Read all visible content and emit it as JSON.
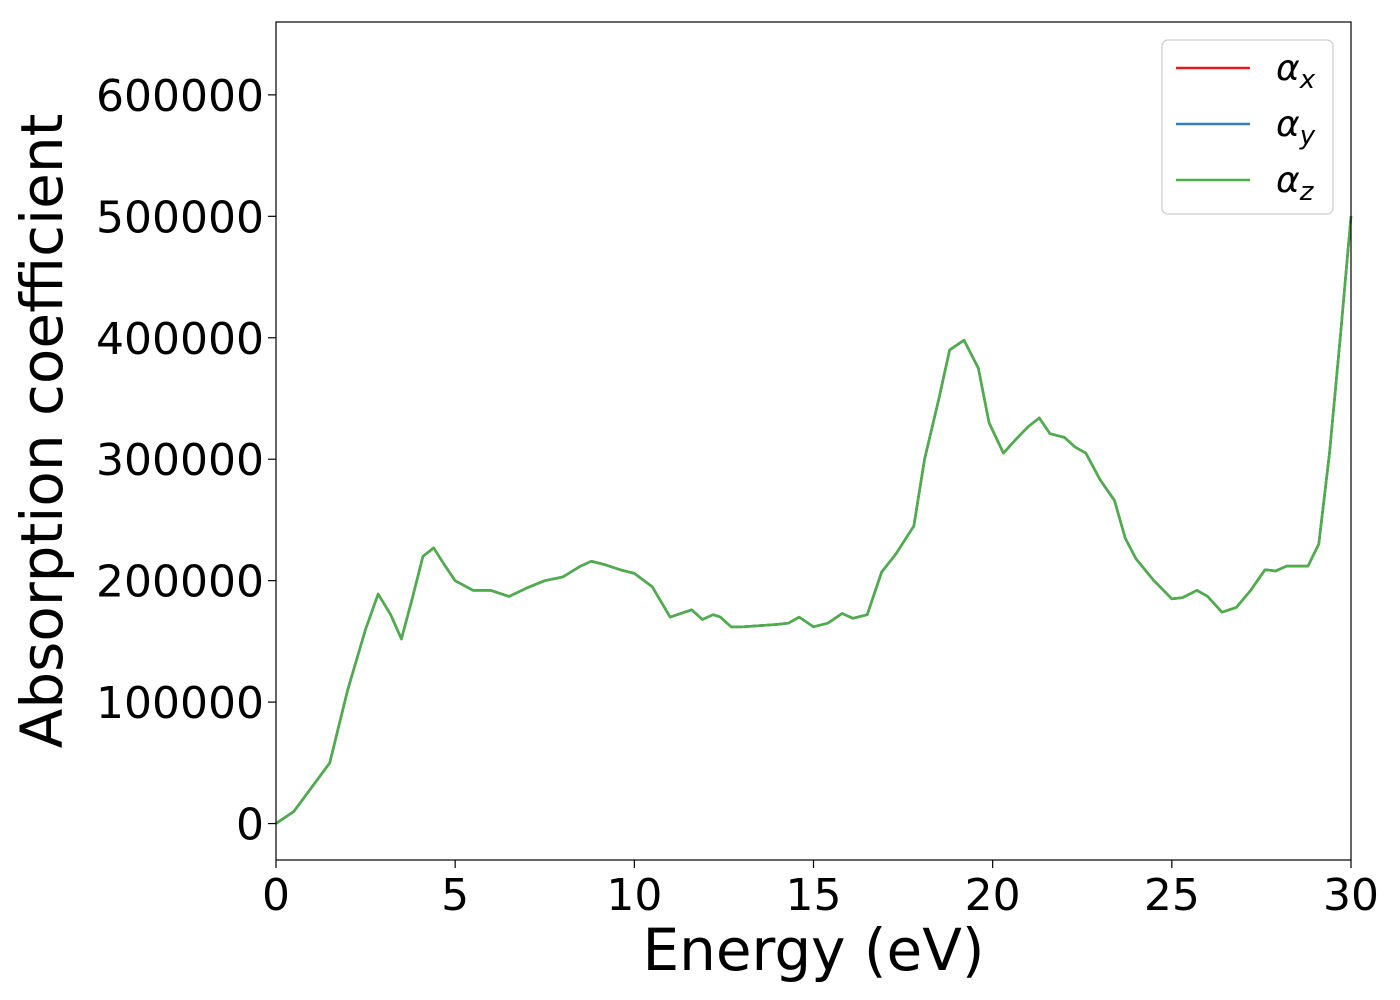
{
  "chart_data": {
    "type": "line",
    "title": "",
    "xlabel": "Energy (eV)",
    "ylabel": "Absorption coefficient",
    "xlim": [
      0,
      30
    ],
    "ylim": [
      -30000,
      660000
    ],
    "xticks": [
      0,
      5,
      10,
      15,
      20,
      25,
      30
    ],
    "yticks": [
      0,
      100000,
      200000,
      300000,
      400000,
      500000,
      600000
    ],
    "grid": false,
    "legend_position": "top-right",
    "legend": [
      {
        "base": "α",
        "sub": "x",
        "color": "#e41a1c"
      },
      {
        "base": "α",
        "sub": "y",
        "color": "#377eb8"
      },
      {
        "base": "α",
        "sub": "z",
        "color": "#4daf4a"
      }
    ],
    "x": [
      0,
      0.5,
      1.0,
      1.5,
      2.0,
      2.5,
      2.85,
      3.2,
      3.5,
      3.8,
      4.1,
      4.4,
      4.7,
      5.0,
      5.5,
      6.0,
      6.5,
      7.0,
      7.5,
      8.0,
      8.5,
      8.8,
      9.2,
      9.6,
      10.0,
      10.5,
      11.0,
      11.3,
      11.6,
      11.9,
      12.2,
      12.4,
      12.7,
      13.0,
      13.5,
      14.0,
      14.3,
      14.6,
      15.0,
      15.4,
      15.8,
      16.1,
      16.5,
      16.9,
      17.3,
      17.8,
      18.1,
      18.5,
      18.8,
      19.2,
      19.6,
      19.9,
      20.3,
      20.7,
      21.0,
      21.3,
      21.6,
      22.0,
      22.3,
      22.6,
      23.0,
      23.4,
      23.7,
      24.0,
      24.5,
      25.0,
      25.3,
      25.7,
      26.0,
      26.4,
      26.8,
      27.2,
      27.6,
      27.9,
      28.2,
      28.5,
      28.8,
      29.1,
      29.4,
      29.7,
      30.0
    ],
    "series": [
      {
        "name": "α_x",
        "values": [
          0,
          10000,
          30000,
          50000,
          110000,
          160000,
          189000,
          172000,
          152000,
          185000,
          220000,
          227000,
          213000,
          200000,
          192000,
          192000,
          187000,
          194000,
          200000,
          203000,
          212000,
          216000,
          213000,
          209000,
          206000,
          195000,
          170000,
          173000,
          176000,
          168000,
          172000,
          170000,
          162000,
          162000,
          163000,
          164000,
          165000,
          170000,
          162000,
          165000,
          173000,
          169000,
          172000,
          207000,
          222000,
          245000,
          300000,
          350000,
          390000,
          398000,
          375000,
          330000,
          305000,
          318000,
          327000,
          334000,
          321000,
          318000,
          310000,
          305000,
          283000,
          266000,
          235000,
          218000,
          200000,
          185000,
          186000,
          192000,
          187000,
          174000,
          178000,
          192000,
          209000,
          208000,
          212000,
          212000,
          212000,
          230000,
          305000,
          400000,
          500000
        ]
      },
      {
        "name": "α_y",
        "values": [
          0,
          10000,
          30000,
          50000,
          110000,
          160000,
          189000,
          172000,
          152000,
          185000,
          220000,
          227000,
          213000,
          200000,
          192000,
          192000,
          187000,
          194000,
          200000,
          203000,
          212000,
          216000,
          213000,
          209000,
          206000,
          195000,
          170000,
          173000,
          176000,
          168000,
          172000,
          170000,
          162000,
          162000,
          163000,
          164000,
          165000,
          170000,
          162000,
          165000,
          173000,
          169000,
          172000,
          207000,
          222000,
          245000,
          300000,
          350000,
          390000,
          398000,
          375000,
          330000,
          305000,
          318000,
          327000,
          334000,
          321000,
          318000,
          310000,
          305000,
          283000,
          266000,
          235000,
          218000,
          200000,
          185000,
          186000,
          192000,
          187000,
          174000,
          178000,
          192000,
          209000,
          208000,
          212000,
          212000,
          212000,
          230000,
          305000,
          400000,
          500000
        ]
      },
      {
        "name": "α_z",
        "values": [
          0,
          10000,
          30000,
          50000,
          110000,
          160000,
          189000,
          172000,
          152000,
          185000,
          220000,
          227000,
          213000,
          200000,
          192000,
          192000,
          187000,
          194000,
          200000,
          203000,
          212000,
          216000,
          213000,
          209000,
          206000,
          195000,
          170000,
          173000,
          176000,
          168000,
          172000,
          170000,
          162000,
          162000,
          163000,
          164000,
          165000,
          170000,
          162000,
          165000,
          173000,
          169000,
          172000,
          207000,
          222000,
          245000,
          300000,
          350000,
          390000,
          398000,
          375000,
          330000,
          305000,
          318000,
          327000,
          334000,
          321000,
          318000,
          310000,
          305000,
          283000,
          266000,
          235000,
          218000,
          200000,
          185000,
          186000,
          192000,
          187000,
          174000,
          178000,
          192000,
          209000,
          208000,
          212000,
          212000,
          212000,
          230000,
          305000,
          400000,
          500000
        ]
      }
    ]
  }
}
